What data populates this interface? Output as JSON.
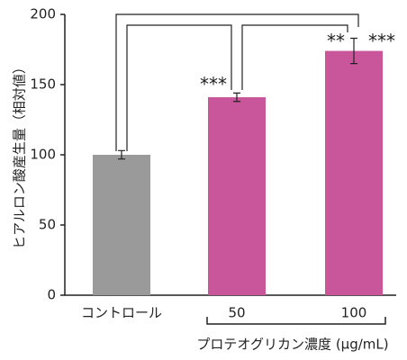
{
  "chart_data": {
    "type": "bar",
    "y_label": "ヒアルロン酸産生量（相対値）",
    "x_label": "プロテオグリカン濃度 (μg/mL)",
    "categories": [
      "コントロール",
      "50",
      "100"
    ],
    "values": [
      100,
      141,
      174
    ],
    "errors": [
      3,
      3,
      9
    ],
    "colors": [
      "#9a9a9a",
      "#c9559b",
      "#c9559b"
    ],
    "ylim": [
      0,
      200
    ],
    "yticks": [
      0,
      50,
      100,
      150,
      200
    ],
    "grid": false,
    "annotations": [
      "***",
      "**",
      "***"
    ]
  }
}
